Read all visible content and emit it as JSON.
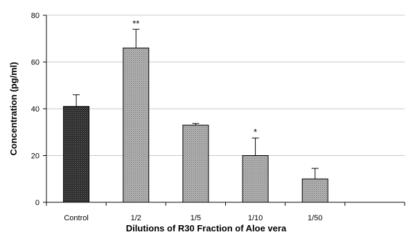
{
  "chart_data": {
    "type": "bar",
    "categories": [
      "Control",
      "1/2",
      "1/5",
      "1/10",
      "1/50"
    ],
    "values": [
      41,
      66,
      33,
      20,
      10
    ],
    "errors": [
      5,
      8,
      0.7,
      7.5,
      4.5
    ],
    "significance": [
      "",
      "**",
      "",
      "*",
      ""
    ],
    "bar_styles": [
      "dark",
      "light",
      "light",
      "light",
      "light"
    ],
    "xlabel": "Dilutions of R30 Fraction of Aloe vera",
    "ylabel": "Concentration (pg/ml)",
    "ylim": [
      0,
      80
    ],
    "yticks": [
      0,
      20,
      40,
      60,
      80
    ],
    "grid": true,
    "colors": {
      "dark_bar": "#1e1e1e",
      "light_bar": "#9a9a9a",
      "grid": "#c8c8c8",
      "axis": "#000000"
    }
  }
}
